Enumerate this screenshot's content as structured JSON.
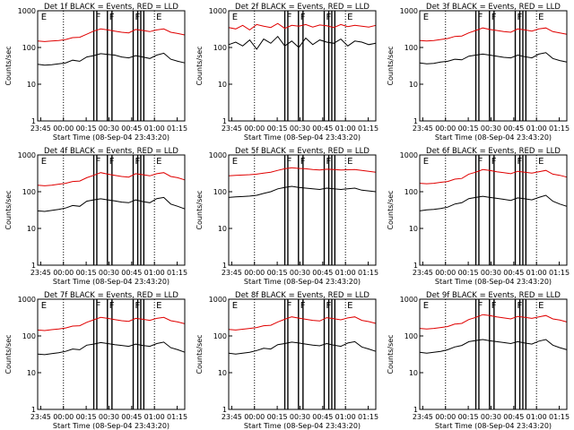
{
  "figure": {
    "background": "#ffffff",
    "colors": {
      "events": "#000000",
      "lld": "#e00000",
      "frame": "#000000"
    }
  },
  "axes_common": {
    "ylabel": "Counts/sec",
    "xlabel": "Start Time (08-Sep-04 23:43:20)",
    "x_tick_labels": [
      "23:45",
      "00:00",
      "00:15",
      "00:30",
      "00:45",
      "01:00",
      "01:15"
    ],
    "y_tick_labels": [
      "1",
      "10",
      "100",
      "1000"
    ],
    "y_scale": "log",
    "ylim": [
      1,
      1000
    ],
    "xlim_minutes_after_2343": [
      0,
      97
    ],
    "grid": false,
    "dotted_time_markers_minutes": [
      17,
      77
    ],
    "event_bars_minutes": [
      [
        37,
        39
      ],
      [
        46,
        49
      ],
      [
        63,
        66
      ],
      [
        68,
        70
      ]
    ],
    "bar_letters": [
      "E",
      "F",
      "F",
      "F",
      "E"
    ]
  },
  "chart_data": [
    {
      "type": "line",
      "title": "Det 1f BLACK = Events, RED = LLD",
      "series": [
        {
          "name": "Events",
          "values": [
            35,
            33,
            34,
            36,
            38,
            45,
            42,
            55,
            60,
            68,
            65,
            62,
            55,
            52,
            60,
            55,
            50,
            62,
            70,
            48,
            42,
            38
          ]
        },
        {
          "name": "LLD",
          "values": [
            150,
            145,
            150,
            155,
            165,
            185,
            190,
            230,
            280,
            320,
            300,
            280,
            260,
            250,
            310,
            290,
            270,
            300,
            320,
            260,
            240,
            220
          ]
        }
      ]
    },
    {
      "type": "line",
      "title": "Det 2f BLACK = Events, RED = LLD",
      "series": [
        {
          "name": "Events",
          "values": [
            120,
            140,
            110,
            160,
            90,
            170,
            130,
            200,
            110,
            150,
            100,
            180,
            120,
            160,
            140,
            130,
            170,
            110,
            150,
            140,
            120,
            130
          ]
        },
        {
          "name": "LLD",
          "values": [
            350,
            320,
            400,
            300,
            420,
            380,
            350,
            450,
            330,
            400,
            380,
            420,
            360,
            410,
            390,
            350,
            420,
            370,
            400,
            380,
            360,
            400
          ]
        }
      ]
    },
    {
      "type": "line",
      "title": "Det 3f BLACK = Events, RED = LLD",
      "series": [
        {
          "name": "Events",
          "values": [
            38,
            36,
            37,
            40,
            42,
            48,
            46,
            58,
            62,
            66,
            62,
            58,
            54,
            52,
            62,
            56,
            52,
            66,
            72,
            50,
            44,
            40
          ]
        },
        {
          "name": "LLD",
          "values": [
            155,
            150,
            155,
            165,
            175,
            200,
            205,
            250,
            290,
            340,
            310,
            290,
            270,
            260,
            320,
            300,
            280,
            320,
            340,
            270,
            250,
            230
          ]
        }
      ]
    },
    {
      "type": "line",
      "title": "Det 4f BLACK = Events, RED = LLD",
      "series": [
        {
          "name": "Events",
          "values": [
            30,
            29,
            31,
            33,
            36,
            42,
            40,
            55,
            60,
            64,
            60,
            56,
            52,
            50,
            60,
            54,
            50,
            65,
            70,
            46,
            40,
            34
          ]
        },
        {
          "name": "LLD",
          "values": [
            150,
            145,
            150,
            160,
            170,
            190,
            195,
            240,
            280,
            330,
            300,
            280,
            260,
            250,
            310,
            290,
            270,
            310,
            330,
            260,
            240,
            210
          ]
        }
      ]
    },
    {
      "type": "line",
      "title": "Det 5f BLACK = Events, RED = LLD",
      "series": [
        {
          "name": "Events",
          "values": [
            70,
            72,
            74,
            76,
            80,
            90,
            100,
            120,
            130,
            140,
            130,
            125,
            120,
            115,
            125,
            120,
            115,
            120,
            125,
            110,
            105,
            100
          ]
        },
        {
          "name": "LLD",
          "values": [
            270,
            280,
            285,
            290,
            300,
            320,
            340,
            380,
            420,
            450,
            430,
            420,
            400,
            390,
            410,
            400,
            390,
            395,
            400,
            380,
            360,
            340
          ]
        }
      ]
    },
    {
      "type": "line",
      "title": "Det 6f BLACK = Events, RED = LLD",
      "series": [
        {
          "name": "Events",
          "values": [
            30,
            32,
            33,
            35,
            38,
            46,
            50,
            65,
            70,
            75,
            70,
            66,
            62,
            58,
            68,
            64,
            60,
            70,
            80,
            55,
            46,
            40
          ]
        },
        {
          "name": "LLD",
          "values": [
            170,
            165,
            170,
            180,
            190,
            220,
            230,
            300,
            340,
            400,
            380,
            350,
            330,
            310,
            360,
            340,
            320,
            350,
            380,
            300,
            280,
            250
          ]
        }
      ]
    },
    {
      "type": "line",
      "title": "Det 7f BLACK = Events, RED = LLD",
      "series": [
        {
          "name": "Events",
          "values": [
            32,
            31,
            33,
            35,
            38,
            44,
            42,
            56,
            60,
            66,
            62,
            58,
            55,
            52,
            60,
            55,
            52,
            62,
            68,
            48,
            42,
            36
          ]
        },
        {
          "name": "LLD",
          "values": [
            145,
            140,
            148,
            155,
            165,
            185,
            190,
            235,
            275,
            320,
            300,
            280,
            260,
            250,
            300,
            285,
            265,
            300,
            320,
            260,
            240,
            215
          ]
        }
      ]
    },
    {
      "type": "line",
      "title": "Det 8f BLACK = Events, RED = LLD",
      "series": [
        {
          "name": "Events",
          "values": [
            34,
            32,
            34,
            36,
            40,
            46,
            44,
            58,
            62,
            68,
            64,
            60,
            56,
            54,
            62,
            56,
            52,
            64,
            70,
            50,
            44,
            38
          ]
        },
        {
          "name": "LLD",
          "values": [
            150,
            145,
            152,
            160,
            170,
            190,
            195,
            240,
            285,
            330,
            305,
            285,
            265,
            255,
            315,
            295,
            275,
            310,
            330,
            265,
            245,
            220
          ]
        }
      ]
    },
    {
      "type": "line",
      "title": "Det 9f BLACK = Events, RED = LLD",
      "series": [
        {
          "name": "Events",
          "values": [
            36,
            34,
            36,
            38,
            42,
            50,
            55,
            70,
            75,
            80,
            74,
            70,
            66,
            62,
            70,
            64,
            60,
            72,
            80,
            56,
            48,
            42
          ]
        },
        {
          "name": "LLD",
          "values": [
            160,
            155,
            160,
            170,
            180,
            210,
            220,
            280,
            320,
            380,
            360,
            330,
            310,
            290,
            340,
            320,
            300,
            330,
            360,
            290,
            270,
            240
          ]
        }
      ]
    }
  ]
}
